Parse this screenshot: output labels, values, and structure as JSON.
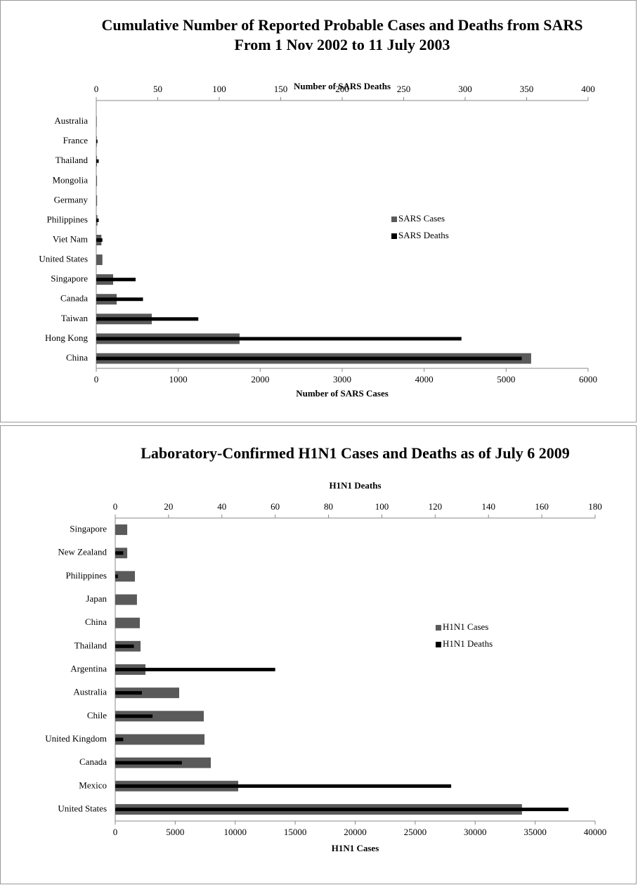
{
  "chart_data": [
    {
      "type": "bar",
      "orientation": "horizontal",
      "title": "Cumulative Number of Reported Probable Cases and Deaths from SARS",
      "subtitle": "From 1 Nov 2002 to 11 July 2003",
      "xlabel": "Number of SARS Cases",
      "x2label": "Number of SARS Deaths",
      "categories": [
        "Australia",
        "France",
        "Thailand",
        "Mongolia",
        "Germany",
        "Philippines",
        "Viet Nam",
        "United States",
        "Singapore",
        "Canada",
        "Taiwan",
        "Hong Kong",
        "China"
      ],
      "series": [
        {
          "name": "SARS Cases",
          "color": "#5a5a5a",
          "values": [
            6,
            7,
            9,
            9,
            10,
            14,
            63,
            75,
            206,
            249,
            677,
            1748,
            5305
          ]
        },
        {
          "name": "SARS Deaths",
          "color": "#000000",
          "axis": "x2",
          "values": [
            0,
            1,
            2,
            0,
            0,
            2,
            5,
            0,
            32,
            38,
            83,
            297,
            346
          ]
        }
      ],
      "xlim": [
        0,
        6000
      ],
      "xticks": [
        0,
        1000,
        2000,
        3000,
        4000,
        5000,
        6000
      ],
      "x2lim": [
        0,
        400
      ],
      "x2ticks": [
        0,
        50,
        100,
        150,
        200,
        250,
        300,
        350,
        400
      ],
      "legend": "right"
    },
    {
      "type": "bar",
      "orientation": "horizontal",
      "title": "Laboratory-Confirmed H1N1 Cases and Deaths as of July 6 2009",
      "xlabel": "H1N1 Cases",
      "x2label": "H1N1 Deaths",
      "categories": [
        "Singapore",
        "New Zealand",
        "Philippines",
        "Japan",
        "China",
        "Thailand",
        "Argentina",
        "Australia",
        "Chile",
        "United Kingdom",
        "Canada",
        "Mexico",
        "United States"
      ],
      "series": [
        {
          "name": "H1N1 Cases",
          "color": "#5a5a5a",
          "values": [
            1000,
            1000,
            1640,
            1810,
            2050,
            2110,
            2520,
            5330,
            7380,
            7440,
            7965,
            10250,
            33900
          ]
        },
        {
          "name": "H1N1 Deaths",
          "color": "#000000",
          "axis": "x2",
          "values": [
            0,
            3,
            1,
            0,
            0,
            7,
            60,
            10,
            14,
            3,
            25,
            126,
            170
          ]
        }
      ],
      "xlim": [
        0,
        40000
      ],
      "xticks": [
        0,
        5000,
        10000,
        15000,
        20000,
        25000,
        30000,
        35000,
        40000
      ],
      "x2lim": [
        0,
        180
      ],
      "x2ticks": [
        0,
        20,
        40,
        60,
        80,
        100,
        120,
        140,
        160,
        180
      ],
      "legend": "right"
    }
  ]
}
